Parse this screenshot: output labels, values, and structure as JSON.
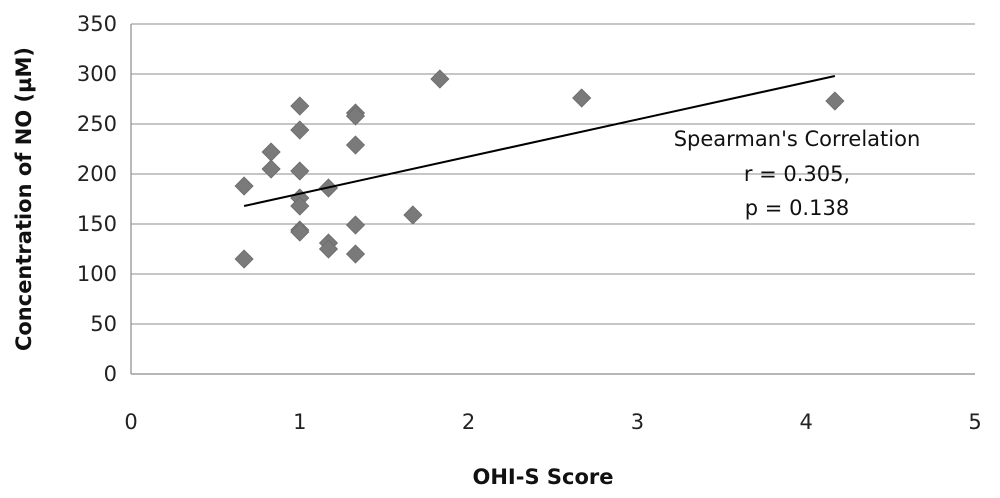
{
  "chart_data": {
    "type": "scatter",
    "title": "",
    "xlabel": "OHI-S Score",
    "ylabel": "Concentration of NO (µM)",
    "xlim": [
      0,
      5
    ],
    "ylim": [
      0,
      350
    ],
    "x_ticks": [
      "0",
      "1",
      "2",
      "3",
      "4",
      "5"
    ],
    "y_ticks": [
      "0",
      "50",
      "100",
      "150",
      "200",
      "250",
      "300",
      "350"
    ],
    "grid": "horizontal",
    "legend": "none",
    "series": [
      {
        "marker": "diamond",
        "color": "#7a7a7a",
        "points": [
          [
            0.67,
            115
          ],
          [
            0.67,
            188
          ],
          [
            0.83,
            222
          ],
          [
            0.83,
            205
          ],
          [
            1.0,
            268
          ],
          [
            1.0,
            244
          ],
          [
            1.0,
            203
          ],
          [
            1.0,
            176
          ],
          [
            1.0,
            168
          ],
          [
            1.0,
            144
          ],
          [
            1.0,
            142
          ],
          [
            1.17,
            186
          ],
          [
            1.17,
            131
          ],
          [
            1.17,
            125
          ],
          [
            1.33,
            261
          ],
          [
            1.33,
            258
          ],
          [
            1.33,
            229
          ],
          [
            1.33,
            149
          ],
          [
            1.33,
            120
          ],
          [
            1.67,
            159
          ],
          [
            1.83,
            295
          ],
          [
            2.67,
            276
          ],
          [
            4.17,
            273
          ]
        ]
      }
    ],
    "trendline": {
      "x": [
        0.67,
        4.17
      ],
      "y": [
        168,
        298
      ]
    },
    "annotation": {
      "line1": "Spearman's Correlation",
      "line2": "r = 0.305,",
      "line3": "p = 0.138"
    }
  }
}
